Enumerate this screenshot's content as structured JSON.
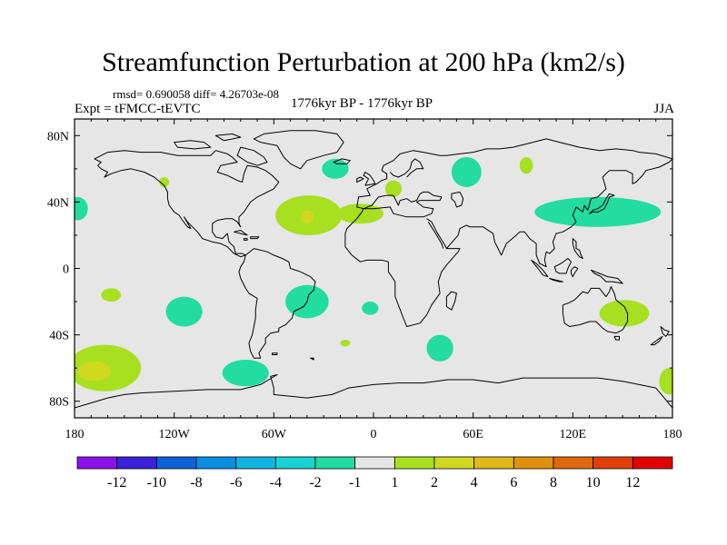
{
  "header": {
    "title": "Streamfunction Perturbation at 200 hPa (km2/s)",
    "stats": "rmsd= 0.690058 diff= 4.26703e-08",
    "experiment": "Expt = tFMCC-tEVTC",
    "period": "1776kyr BP - 1776kyr BP",
    "season": "JJA"
  },
  "chart_data": {
    "type": "heatmap",
    "title": "Streamfunction Perturbation at 200 hPa (km2/s)",
    "subtitle": "1776kyr BP - 1776kyr BP",
    "xlabel": "",
    "ylabel": "",
    "xlim": [
      -180,
      180
    ],
    "ylim": [
      -90,
      90
    ],
    "x_ticks": [
      {
        "value": -180,
        "label": "180"
      },
      {
        "value": -120,
        "label": "120W"
      },
      {
        "value": -60,
        "label": "60W"
      },
      {
        "value": 0,
        "label": "0"
      },
      {
        "value": 60,
        "label": "60E"
      },
      {
        "value": 120,
        "label": "120E"
      },
      {
        "value": 180,
        "label": "180"
      }
    ],
    "y_ticks": [
      {
        "value": 80,
        "label": "80N"
      },
      {
        "value": 40,
        "label": "40N"
      },
      {
        "value": 0,
        "label": "0"
      },
      {
        "value": -40,
        "label": "40S"
      },
      {
        "value": -80,
        "label": "80S"
      }
    ],
    "background_color": "#e6e6e6",
    "colorbar": {
      "colors": [
        "#8a12e8",
        "#3a22d8",
        "#1060d8",
        "#0a8ee0",
        "#10b4e0",
        "#18d2d2",
        "#22dca0",
        "#e6e6e6",
        "#a6e020",
        "#d0d820",
        "#e0b818",
        "#e09010",
        "#e06810",
        "#e04008",
        "#e00000"
      ],
      "labels": [
        "-12",
        "-10",
        "-8",
        "-6",
        "-4",
        "-2",
        "-1",
        "1",
        "2",
        "4",
        "6",
        "8",
        "10",
        "12"
      ]
    },
    "anomalies": [
      {
        "lon": -162,
        "lat": -60,
        "rx": 22,
        "ry": 14,
        "level": 1
      },
      {
        "lon": -168,
        "lat": -62,
        "rx": 10,
        "ry": 6,
        "level": 2
      },
      {
        "lon": -178,
        "lat": 36,
        "rx": 6,
        "ry": 7,
        "level": -1
      },
      {
        "lon": -158,
        "lat": -16,
        "rx": 6,
        "ry": 4,
        "level": 1
      },
      {
        "lon": -126,
        "lat": 52,
        "rx": 3,
        "ry": 3,
        "level": 1
      },
      {
        "lon": -114,
        "lat": -26,
        "rx": 11,
        "ry": 9,
        "level": -1
      },
      {
        "lon": -77,
        "lat": -63,
        "rx": 14,
        "ry": 8,
        "level": -1
      },
      {
        "lon": -40,
        "lat": -20,
        "rx": 13,
        "ry": 10,
        "level": -1
      },
      {
        "lon": -39,
        "lat": 32,
        "rx": 20,
        "ry": 12,
        "level": 1
      },
      {
        "lon": -40,
        "lat": 31,
        "rx": 4,
        "ry": 4,
        "level": 2
      },
      {
        "lon": -8,
        "lat": 33,
        "rx": 14,
        "ry": 6,
        "level": 1
      },
      {
        "lon": 12,
        "lat": 48,
        "rx": 5,
        "ry": 5,
        "level": 1
      },
      {
        "lon": -23,
        "lat": 60,
        "rx": 8,
        "ry": 6,
        "level": -1
      },
      {
        "lon": -2,
        "lat": -24,
        "rx": 5,
        "ry": 4,
        "level": -1
      },
      {
        "lon": -17,
        "lat": -45,
        "rx": 3,
        "ry": 2,
        "level": 1
      },
      {
        "lon": 40,
        "lat": -48,
        "rx": 8,
        "ry": 8,
        "level": -1
      },
      {
        "lon": 56,
        "lat": 58,
        "rx": 9,
        "ry": 9,
        "level": -1
      },
      {
        "lon": 92,
        "lat": 62,
        "rx": 4,
        "ry": 5,
        "level": 1
      },
      {
        "lon": 135,
        "lat": 34,
        "rx": 38,
        "ry": 9,
        "level": -1
      },
      {
        "lon": 151,
        "lat": -27,
        "rx": 15,
        "ry": 8,
        "level": 1
      },
      {
        "lon": 178,
        "lat": -68,
        "rx": 6,
        "ry": 8,
        "level": 1
      }
    ]
  }
}
